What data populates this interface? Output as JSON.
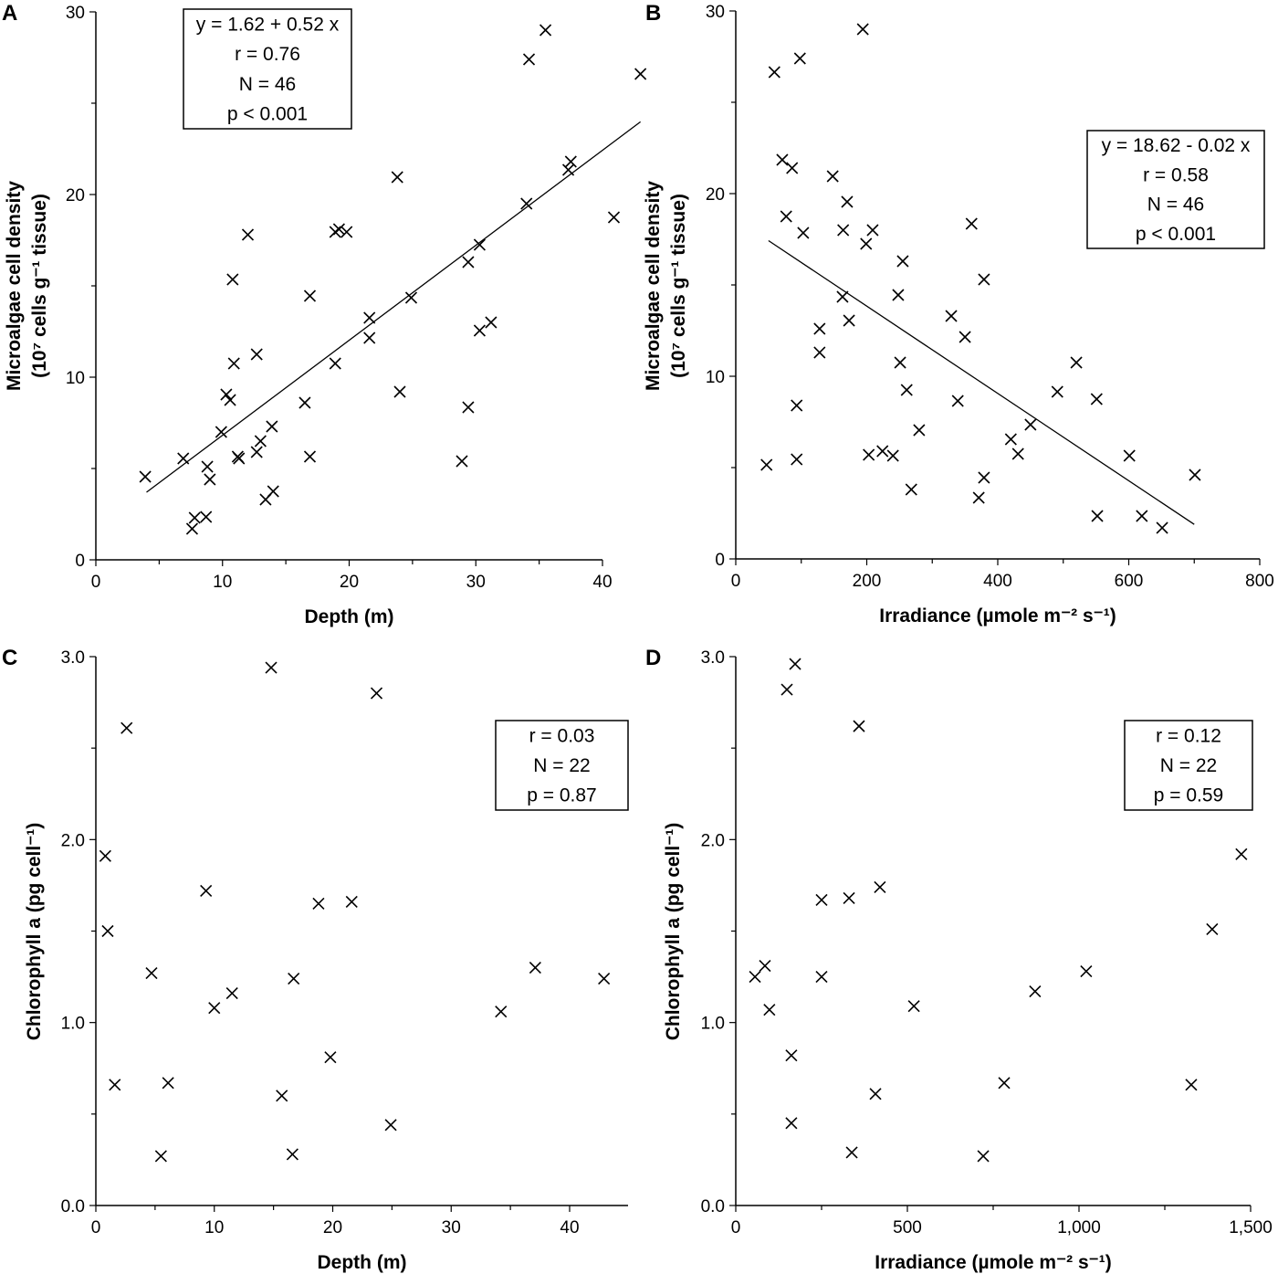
{
  "chart_data": [
    {
      "panel": "A",
      "type": "scatter",
      "xlabel": "Depth (m)",
      "ylabel": [
        "Microalgae cell density",
        "(10⁷ cells g⁻¹ tissue)"
      ],
      "xlim": [
        0,
        45
      ],
      "ylim": [
        0,
        30
      ],
      "xticks": [
        0,
        10,
        20,
        30,
        40
      ],
      "xtick_labels": [
        "0",
        "10",
        "20",
        "30",
        "40"
      ],
      "yticks": [
        0,
        10,
        20,
        30
      ],
      "ytick_labels": [
        "0",
        "10",
        "20",
        "30"
      ],
      "grid": false,
      "marker": "x",
      "stats": [
        "y = 1.62 + 0.52 x",
        "r = 0.76",
        "N = 46",
        "p < 0.001"
      ],
      "trendline": {
        "intercept": 1.62,
        "slope": 0.52,
        "x_range": [
          4,
          43
        ]
      },
      "points": [
        [
          3.9,
          4.55
        ],
        [
          6.9,
          5.55
        ],
        [
          7.6,
          1.7
        ],
        [
          7.8,
          2.3
        ],
        [
          8.7,
          2.35
        ],
        [
          8.8,
          5.1
        ],
        [
          9.0,
          4.4
        ],
        [
          9.9,
          7.0
        ],
        [
          10.3,
          9.05
        ],
        [
          10.6,
          8.75
        ],
        [
          10.8,
          15.35
        ],
        [
          10.9,
          10.75
        ],
        [
          11.2,
          5.65
        ],
        [
          11.3,
          5.55
        ],
        [
          12.0,
          17.8
        ],
        [
          12.7,
          11.25
        ],
        [
          12.7,
          5.9
        ],
        [
          13.0,
          6.5
        ],
        [
          13.4,
          3.3
        ],
        [
          13.9,
          7.3
        ],
        [
          14.0,
          3.75
        ],
        [
          16.5,
          8.6
        ],
        [
          16.9,
          5.65
        ],
        [
          16.9,
          14.45
        ],
        [
          18.9,
          10.75
        ],
        [
          18.9,
          17.95
        ],
        [
          19.2,
          18.1
        ],
        [
          19.8,
          17.95
        ],
        [
          21.6,
          13.25
        ],
        [
          21.6,
          12.15
        ],
        [
          23.8,
          20.95
        ],
        [
          24.0,
          9.2
        ],
        [
          24.9,
          14.35
        ],
        [
          28.9,
          5.4
        ],
        [
          29.4,
          8.35
        ],
        [
          29.4,
          16.3
        ],
        [
          30.3,
          17.25
        ],
        [
          30.3,
          12.55
        ],
        [
          31.2,
          13.0
        ],
        [
          34.0,
          19.5
        ],
        [
          34.2,
          27.4
        ],
        [
          35.5,
          29.0
        ],
        [
          37.3,
          21.35
        ],
        [
          37.5,
          21.8
        ],
        [
          40.9,
          18.75
        ],
        [
          43.0,
          26.6
        ]
      ]
    },
    {
      "panel": "B",
      "type": "scatter",
      "xlabel": "Irradiance (µmole m⁻² s⁻¹)",
      "ylabel": [
        "Microalgae cell density",
        "(10⁷ cells g⁻¹ tissue)"
      ],
      "xlim": [
        0,
        800
      ],
      "ylim": [
        0,
        30
      ],
      "xticks": [
        0,
        200,
        400,
        600,
        800
      ],
      "xtick_labels": [
        "0",
        "200",
        "400",
        "600",
        "800"
      ],
      "yticks": [
        0,
        10,
        20,
        30
      ],
      "ytick_labels": [
        "0",
        "10",
        "20",
        "30"
      ],
      "grid": false,
      "marker": "x",
      "stats": [
        "y = 18.62 - 0.02 x",
        "r = 0.58",
        "N = 46",
        "p < 0.001"
      ],
      "trendline": {
        "intercept": 18.62,
        "slope": -0.0239,
        "x_range": [
          50,
          700
        ]
      },
      "points": [
        [
          47,
          5.15
        ],
        [
          59,
          26.65
        ],
        [
          71,
          21.85
        ],
        [
          77,
          18.75
        ],
        [
          86,
          21.4
        ],
        [
          93,
          8.4
        ],
        [
          93,
          5.45
        ],
        [
          98,
          27.4
        ],
        [
          103,
          17.85
        ],
        [
          128,
          12.6
        ],
        [
          128,
          11.3
        ],
        [
          148,
          20.95
        ],
        [
          163,
          14.35
        ],
        [
          164,
          18.0
        ],
        [
          170,
          19.55
        ],
        [
          173,
          13.05
        ],
        [
          194,
          29.0
        ],
        [
          199,
          17.25
        ],
        [
          203,
          5.7
        ],
        [
          209,
          18.0
        ],
        [
          224,
          5.9
        ],
        [
          240,
          5.65
        ],
        [
          248,
          14.45
        ],
        [
          251,
          10.75
        ],
        [
          255,
          16.3
        ],
        [
          261,
          9.25
        ],
        [
          268,
          3.8
        ],
        [
          280,
          7.05
        ],
        [
          329,
          13.3
        ],
        [
          339,
          8.65
        ],
        [
          350,
          12.15
        ],
        [
          360,
          18.35
        ],
        [
          371,
          3.35
        ],
        [
          379,
          15.3
        ],
        [
          379,
          4.45
        ],
        [
          420,
          6.55
        ],
        [
          431,
          5.75
        ],
        [
          450,
          7.35
        ],
        [
          491,
          9.15
        ],
        [
          520,
          10.75
        ],
        [
          551,
          8.75
        ],
        [
          552,
          2.35
        ],
        [
          601,
          5.65
        ],
        [
          620,
          2.35
        ],
        [
          651,
          1.7
        ],
        [
          701,
          4.6
        ]
      ]
    },
    {
      "panel": "C",
      "type": "scatter",
      "xlabel": "Depth (m)",
      "ylabel": [
        "Chlorophyll a (pg cell⁻¹)"
      ],
      "xlim": [
        0,
        45
      ],
      "ylim": [
        0,
        3
      ],
      "xticks": [
        0,
        10,
        20,
        30,
        40
      ],
      "xtick_labels": [
        "0",
        "10",
        "20",
        "30",
        "40"
      ],
      "yticks": [
        0,
        1,
        2,
        3
      ],
      "ytick_labels": [
        "0.0",
        "1.0",
        "2.0",
        "3.0"
      ],
      "grid": false,
      "marker": "x",
      "stats": [
        "r = 0.03",
        "N = 22",
        "p = 0.87"
      ],
      "points": [
        [
          0.8,
          1.91
        ],
        [
          1.0,
          1.5
        ],
        [
          1.6,
          0.66
        ],
        [
          2.6,
          2.61
        ],
        [
          4.7,
          1.27
        ],
        [
          5.5,
          0.27
        ],
        [
          6.1,
          0.67
        ],
        [
          9.3,
          1.72
        ],
        [
          10.0,
          1.08
        ],
        [
          11.5,
          1.16
        ],
        [
          14.8,
          2.94
        ],
        [
          15.7,
          0.6
        ],
        [
          16.6,
          0.28
        ],
        [
          16.7,
          1.24
        ],
        [
          18.8,
          1.65
        ],
        [
          19.8,
          0.81
        ],
        [
          21.6,
          1.66
        ],
        [
          23.7,
          2.8
        ],
        [
          24.9,
          0.44
        ],
        [
          34.2,
          1.06
        ],
        [
          37.1,
          1.3
        ],
        [
          42.9,
          1.24
        ]
      ]
    },
    {
      "panel": "D",
      "type": "scatter",
      "xlabel": "Irradiance (µmole m⁻² s⁻¹)",
      "ylabel": [
        "Chlorophyll a (pg cell⁻¹)"
      ],
      "xlim": [
        0,
        1500
      ],
      "ylim": [
        0,
        3
      ],
      "xticks": [
        0,
        500,
        1000,
        1500
      ],
      "xtick_labels": [
        "0",
        "500",
        "1,000",
        "1,500"
      ],
      "yticks": [
        0,
        1,
        2,
        3
      ],
      "ytick_labels": [
        "0.0",
        "1.0",
        "2.0",
        "3.0"
      ],
      "grid": false,
      "marker": "x",
      "stats": [
        "r = 0.12",
        "N = 22",
        "p = 0.59"
      ],
      "points": [
        [
          56,
          1.25
        ],
        [
          85,
          1.31
        ],
        [
          98,
          1.07
        ],
        [
          149,
          2.82
        ],
        [
          162,
          0.82
        ],
        [
          162,
          0.45
        ],
        [
          173,
          2.96
        ],
        [
          250,
          1.67
        ],
        [
          250,
          1.25
        ],
        [
          330,
          1.68
        ],
        [
          338,
          0.29
        ],
        [
          359,
          2.62
        ],
        [
          407,
          0.61
        ],
        [
          420,
          1.74
        ],
        [
          519,
          1.09
        ],
        [
          721,
          0.27
        ],
        [
          782,
          0.67
        ],
        [
          872,
          1.17
        ],
        [
          1021,
          1.28
        ],
        [
          1327,
          0.66
        ],
        [
          1388,
          1.51
        ],
        [
          1473,
          1.92
        ]
      ]
    }
  ]
}
